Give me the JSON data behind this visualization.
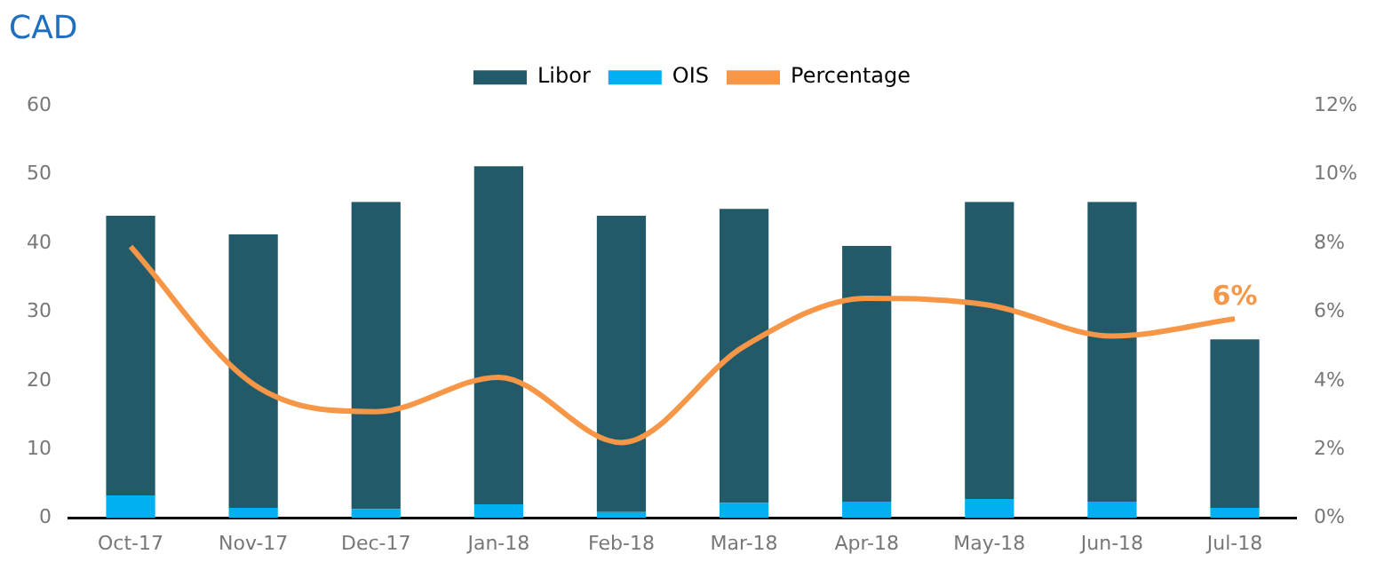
{
  "chart_data": {
    "type": "bar",
    "title": "CAD",
    "stacked": true,
    "categories": [
      "Oct-17",
      "Nov-17",
      "Dec-17",
      "Jan-18",
      "Feb-18",
      "Mar-18",
      "Apr-18",
      "May-18",
      "Jun-18",
      "Jul-18"
    ],
    "series": [
      {
        "name": "OIS",
        "color": "#00b0f0",
        "values": [
          3.3,
          1.5,
          1.3,
          2.0,
          0.9,
          2.2,
          2.4,
          2.8,
          2.4,
          1.5
        ]
      },
      {
        "name": "Libor",
        "color": "#235a6a",
        "values": [
          40.7,
          39.8,
          44.7,
          49.2,
          43.1,
          42.8,
          37.2,
          43.2,
          43.6,
          24.5
        ]
      },
      {
        "name": "Percentage",
        "type": "line",
        "axis": "y2",
        "color": "#f79646",
        "marker": "none",
        "values": [
          7.9,
          3.9,
          3.1,
          4.1,
          2.2,
          5.0,
          6.4,
          6.2,
          5.3,
          5.8
        ],
        "value_labels": [
          null,
          null,
          null,
          null,
          null,
          null,
          null,
          null,
          null,
          "6%"
        ]
      }
    ],
    "ylim": [
      0,
      60
    ],
    "yticks": [
      0,
      10,
      20,
      30,
      40,
      50,
      60
    ],
    "y2lim": [
      0,
      12
    ],
    "y2ticks": [
      {
        "value": 0,
        "label": "0%"
      },
      {
        "value": 2,
        "label": "2%"
      },
      {
        "value": 4,
        "label": "4%"
      },
      {
        "value": 6,
        "label": "6%"
      },
      {
        "value": 8,
        "label": "8%"
      },
      {
        "value": 10,
        "label": "10%"
      },
      {
        "value": 12,
        "label": "12%"
      }
    ],
    "grid": false,
    "legend": "top"
  }
}
